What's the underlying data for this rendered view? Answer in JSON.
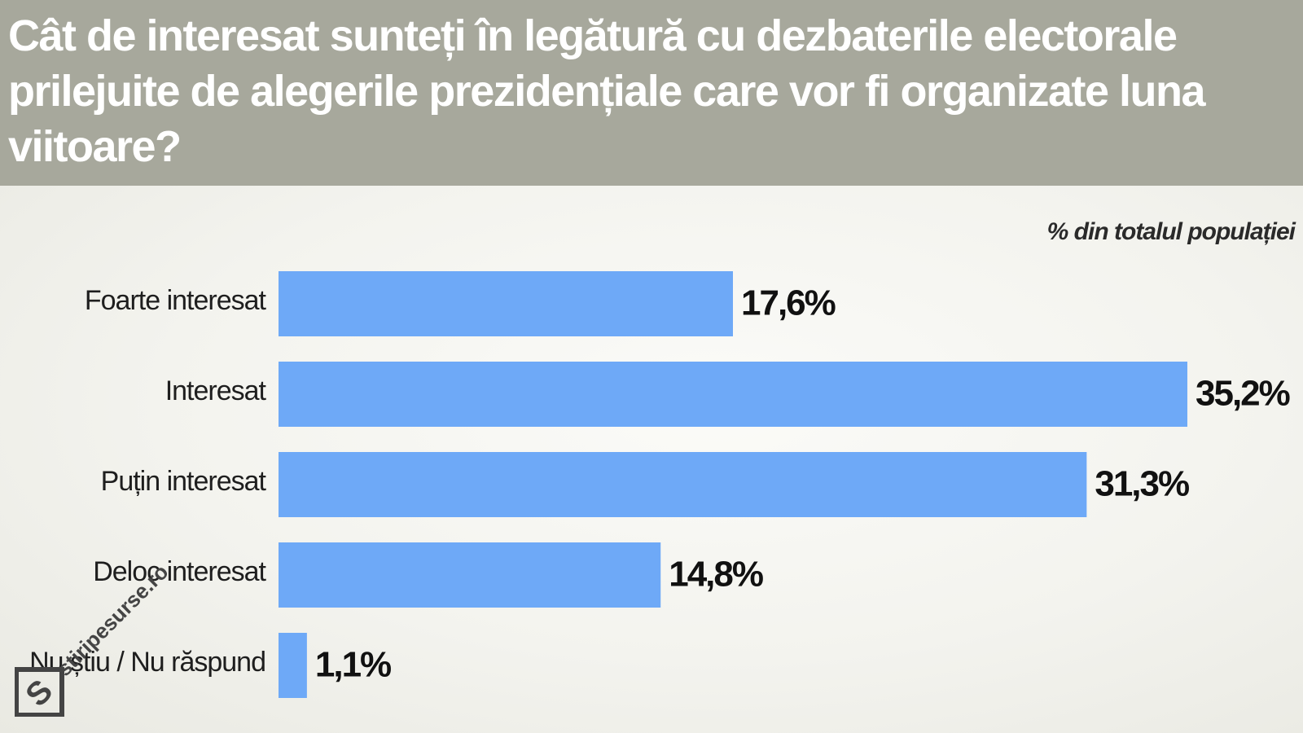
{
  "title": "Cât de interesat sunteți în legătură cu dezbaterile electorale prilejuite de alegerile prezidențiale care vor fi organizate luna viitoare?",
  "unit_note": "% din totalul populației",
  "watermark": "stiripesurse.ro",
  "colors": {
    "bar": "#6ea9f7",
    "header": "#a7a89c"
  },
  "chart_data": {
    "type": "bar",
    "orientation": "horizontal",
    "title": "Cât de interesat sunteți în legătură cu dezbaterile electorale prilejuite de alegerile prezidențiale care vor fi organizate luna viitoare?",
    "xlabel": "",
    "ylabel": "",
    "unit": "% din totalul populației",
    "categories": [
      "Foarte interesat",
      "Interesat",
      "Puțin interesat",
      "Deloc interesat",
      "Nu știu / Nu răspund"
    ],
    "values": [
      17.6,
      35.2,
      31.3,
      14.8,
      1.1
    ],
    "value_labels": [
      "17,6%",
      "35,2%",
      "31,3%",
      "14,8%",
      "1,1%"
    ],
    "xlim": [
      0,
      35.2
    ],
    "grid": false,
    "legend": "none"
  }
}
